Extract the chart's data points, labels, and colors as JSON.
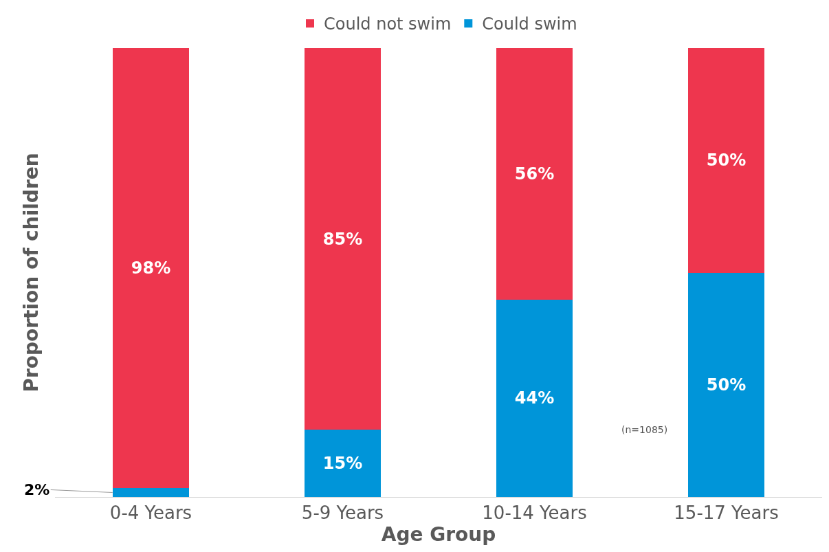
{
  "chart_data": {
    "type": "bar",
    "stacked": true,
    "xlabel": "Age Group",
    "ylabel": "Proportion of children",
    "categories": [
      "0-4 Years",
      "5-9 Years",
      "10-14 Years",
      "15-17 Years"
    ],
    "series": [
      {
        "name": "Could swim",
        "color": "#0095d9",
        "values": [
          2,
          15,
          44,
          50
        ],
        "value_labels": [
          "2%",
          "15%",
          "44%",
          "50%"
        ]
      },
      {
        "name": "Could not swim",
        "color": "#ee364e",
        "values": [
          98,
          85,
          56,
          50
        ],
        "value_labels": [
          "98%",
          "85%",
          "56%",
          "50%"
        ]
      }
    ],
    "annotations": [
      "(n=1085)"
    ],
    "legend": "top"
  }
}
